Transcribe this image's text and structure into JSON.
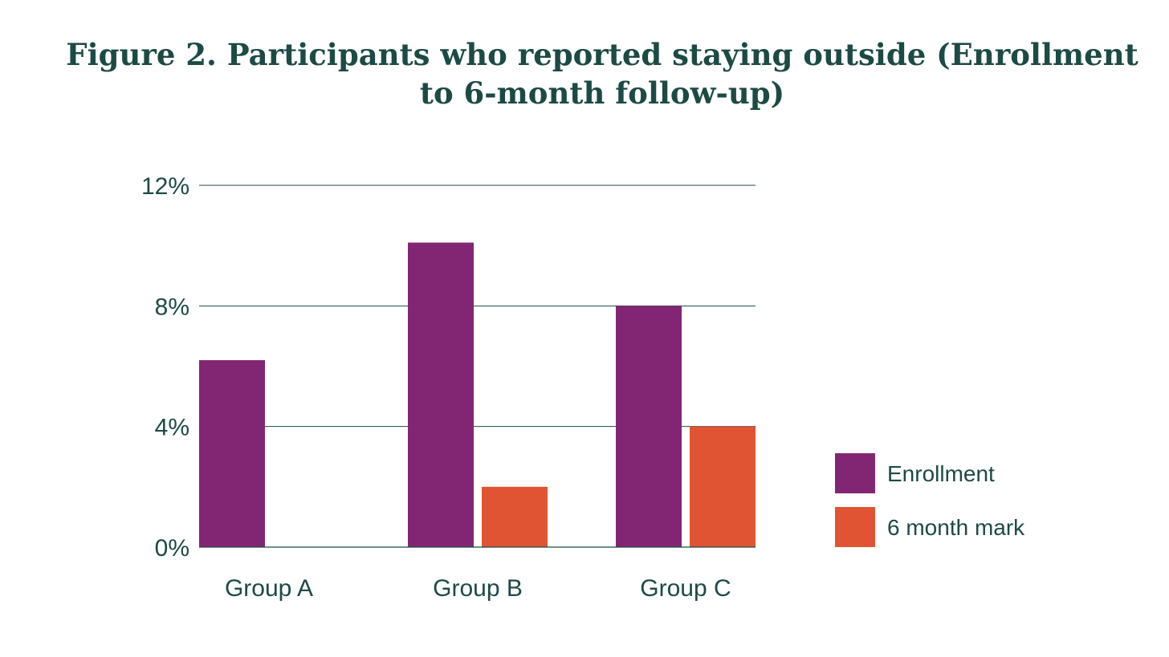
{
  "chart_data": {
    "type": "bar",
    "title": "Figure 2. Participants who reported staying outside (Enrollment to 6-month follow-up)",
    "xlabel": "",
    "ylabel": "",
    "categories": [
      "Group A",
      "Group B",
      "Group C"
    ],
    "series": [
      {
        "name": "Enrollment",
        "values": [
          6.2,
          10.1,
          8.0
        ],
        "color": "#822674"
      },
      {
        "name": "6 month mark",
        "values": [
          0,
          2.0,
          4.0
        ],
        "color": "#e05433"
      }
    ],
    "ylim": [
      0,
      12
    ],
    "yticks": [
      0,
      4,
      8,
      12
    ],
    "ytick_labels": [
      "0%",
      "4%",
      "8%",
      "12%"
    ],
    "grid": true,
    "legend_position": "right"
  }
}
